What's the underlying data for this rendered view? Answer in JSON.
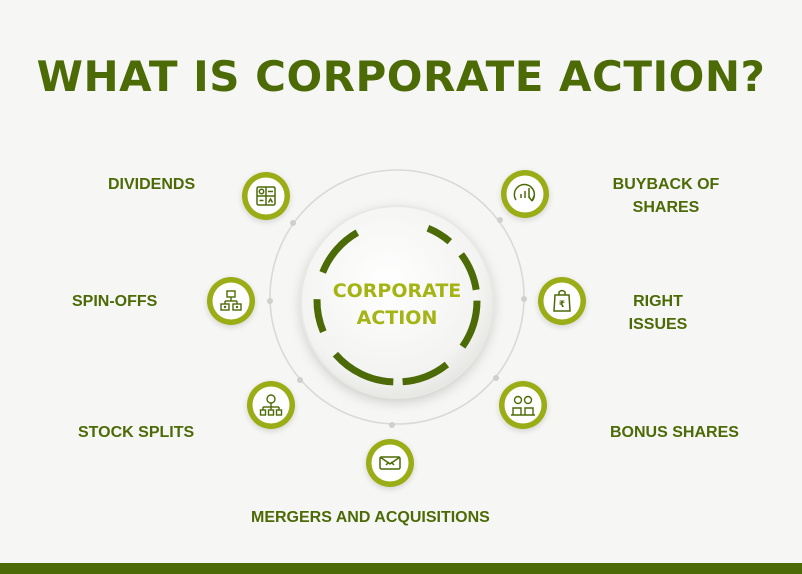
{
  "title": "WHAT IS CORPORATE ACTION?",
  "center": {
    "line1": "CORPORATE",
    "line2": "ACTION"
  },
  "items": {
    "dividends": {
      "label": "DIVIDENDS",
      "icon": "dividends-icon"
    },
    "spin_offs": {
      "label": "SPIN-OFFS",
      "icon": "spin-offs-icon"
    },
    "stock_splits": {
      "label": "STOCK SPLITS",
      "icon": "stock-splits-icon"
    },
    "mergers": {
      "label": "MERGERS AND ACQUISITIONS",
      "icon": "mergers-icon"
    },
    "bonus_shares": {
      "label": "BONUS SHARES",
      "icon": "bonus-shares-icon"
    },
    "right_issues": {
      "line1": "RIGHT",
      "line2": "ISSUES",
      "icon": "right-issues-icon"
    },
    "buyback": {
      "line1": "BUYBACK OF",
      "line2": "SHARES",
      "icon": "buyback-icon"
    }
  },
  "colors": {
    "primary": "#4c6a06",
    "accent": "#9aac12",
    "background": "#f6f6f4"
  }
}
